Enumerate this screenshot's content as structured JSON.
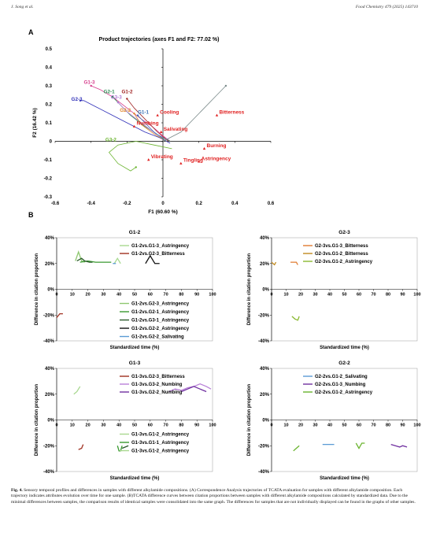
{
  "header": {
    "left": "J. Song et al.",
    "right": "Food Chemistry 479 (2025) 143710"
  },
  "panel_a": {
    "letter": "A",
    "chart_data": {
      "type": "line",
      "title": "Product trajectories (axes F1 and F2: 77.02 %)",
      "xlabel": "F1 (60.60 %)",
      "ylabel": "F2 (16.42 %)",
      "xlim": [
        -0.6,
        0.6
      ],
      "ylim": [
        -0.3,
        0.5
      ],
      "xticks": [
        "-0.6",
        "-0.4",
        "-0.2",
        "0",
        "0.2",
        "0.4",
        "0.6"
      ],
      "yticks": [
        "0.5",
        "0.4",
        "0.3",
        "0.2",
        "0.1",
        "0",
        "-0.1",
        "-0.2",
        "-0.3"
      ],
      "attributes": [
        {
          "name": "Bitterness",
          "x": 0.3,
          "y": 0.14
        },
        {
          "name": "Cooling",
          "x": -0.03,
          "y": 0.14
        },
        {
          "name": "Salivating",
          "x": -0.01,
          "y": 0.05
        },
        {
          "name": "Numbing",
          "x": -0.16,
          "y": 0.08
        },
        {
          "name": "Burning",
          "x": 0.23,
          "y": -0.04
        },
        {
          "name": "Astringency",
          "x": 0.2,
          "y": -0.11
        },
        {
          "name": "Tingling",
          "x": 0.1,
          "y": -0.12
        },
        {
          "name": "Vibrating",
          "x": -0.08,
          "y": -0.1
        }
      ],
      "samples": [
        {
          "name": "G1-3",
          "color": "#d63c8c",
          "label_x": -0.44,
          "label_y": 0.31,
          "x": [
            0.04,
            0.0,
            -0.06,
            -0.12,
            -0.2,
            -0.28,
            -0.35,
            -0.4
          ],
          "y": [
            0.0,
            0.03,
            0.08,
            0.12,
            0.18,
            0.24,
            0.28,
            0.3
          ]
        },
        {
          "name": "G2-3",
          "color": "#3030b8",
          "label_x": -0.51,
          "label_y": 0.22,
          "x": [
            0.04,
            -0.02,
            -0.1,
            -0.2,
            -0.3,
            -0.38,
            -0.44,
            -0.46
          ],
          "y": [
            -0.01,
            0.02,
            0.05,
            0.1,
            0.15,
            0.19,
            0.22,
            0.22
          ]
        },
        {
          "name": "G2-1",
          "color": "#2f8c55",
          "label_x": -0.33,
          "label_y": 0.26,
          "x": [
            0.04,
            -0.02,
            -0.1,
            -0.18,
            -0.24,
            -0.28
          ],
          "y": [
            0.0,
            0.03,
            0.08,
            0.14,
            0.2,
            0.24
          ]
        },
        {
          "name": "G3-3",
          "color": "#b07ad6",
          "label_x": -0.29,
          "label_y": 0.23,
          "x": [
            0.03,
            -0.04,
            -0.12,
            -0.2,
            -0.25
          ],
          "y": [
            0.01,
            0.04,
            0.1,
            0.16,
            0.21
          ]
        },
        {
          "name": "G1-2",
          "color": "#a02222",
          "label_x": -0.23,
          "label_y": 0.26,
          "x": [
            0.03,
            -0.03,
            -0.1,
            -0.16,
            -0.2
          ],
          "y": [
            0.0,
            0.05,
            0.12,
            0.18,
            0.23
          ]
        },
        {
          "name": "G2-2",
          "color": "#e0862a",
          "label_x": -0.24,
          "label_y": 0.16,
          "x": [
            0.02,
            -0.05,
            -0.12,
            -0.16
          ],
          "y": [
            0.0,
            0.04,
            0.09,
            0.15
          ]
        },
        {
          "name": "G1-1",
          "color": "#3a6fb5",
          "label_x": -0.14,
          "label_y": 0.15,
          "x": [
            0.02,
            -0.05,
            -0.1,
            -0.14
          ],
          "y": [
            0.0,
            0.05,
            0.1,
            0.14
          ]
        },
        {
          "name": "G3-2",
          "color": "#6ab42e",
          "label_x": -0.32,
          "label_y": 0.0,
          "x": [
            0.05,
            -0.05,
            -0.15,
            -0.25,
            -0.3,
            -0.25,
            -0.18,
            -0.15
          ],
          "y": [
            -0.04,
            -0.02,
            0.0,
            -0.02,
            -0.06,
            -0.12,
            -0.16,
            -0.14
          ]
        },
        {
          "name": "G3-1",
          "color": "#7a8a8a",
          "label_x": null,
          "label_y": null,
          "x": [
            0.0,
            0.1,
            0.2,
            0.3,
            0.35
          ],
          "y": [
            0.0,
            0.05,
            0.15,
            0.25,
            0.3
          ]
        }
      ]
    }
  },
  "panel_b": {
    "letter": "B",
    "chart_data": [
      {
        "type": "line",
        "title": "G1-2",
        "xlabel": "Standardized time (%)",
        "ylabel": "Difference in citation proportion",
        "xlim": [
          0,
          100
        ],
        "ylim": [
          -40,
          40
        ],
        "yticks": [
          "40%",
          "20%",
          "0%",
          "-20%",
          "-40%"
        ],
        "xticks": [
          "0",
          "10",
          "20",
          "30",
          "40",
          "50",
          "60",
          "70",
          "80",
          "90",
          "100"
        ],
        "legend_top": [
          "G1-2vs.G1-3_Astringency",
          "G1-2vs.G2-3_Bitterness"
        ],
        "legend_bottom": [
          "G1-2vs.G2-3_Astringency",
          "G1-2vs.G2-1_Astringency",
          "G1-2vs.G3-1_Astringency",
          "G1-2vs.G2-2_Astringency",
          "G1-2vs.G2-2_Salivating"
        ],
        "series": [
          {
            "name": "G1-2vs.G1-3_Astringency",
            "color": "#a8d890",
            "x": [
              37,
              39,
              41
            ],
            "y": [
              20,
              24,
              20
            ]
          },
          {
            "name": "G1-2vs.G2-3_Bitterness",
            "color": "#a03020",
            "x": [
              0,
              2,
              4
            ],
            "y": [
              -22,
              -19,
              -19
            ]
          },
          {
            "name": "G1-2vs.G2-3_Astringency",
            "color": "#8fc870",
            "x": [
              12,
              14,
              16,
              18
            ],
            "y": [
              22,
              29,
              22,
              21
            ]
          },
          {
            "name": "G1-2vs.G2-1_Astringency",
            "color": "#3a9a30",
            "x": [
              15,
              20,
              25,
              30,
              35
            ],
            "y": [
              21,
              22,
              21,
              21,
              21
            ]
          },
          {
            "name": "G1-2vs.G3-1_Astringency",
            "color": "#2a5a2a",
            "x": [
              13,
              16,
              18,
              21,
              23
            ],
            "y": [
              22,
              24,
              22,
              21,
              21
            ]
          },
          {
            "name": "G1-2vs.G2-2_Astringency",
            "color": "#111111",
            "x": [
              57,
              60,
              63,
              66
            ],
            "y": [
              20,
              26,
              20,
              20
            ]
          },
          {
            "name": "G1-2vs.G2-2_Salivating",
            "color": "#5b9bd5",
            "x": [
              36,
              38
            ],
            "y": [
              20,
              20
            ]
          }
        ]
      },
      {
        "type": "line",
        "title": "G2-3",
        "xlabel": "Standardized time (%)",
        "ylabel": "Difference in citation proportion",
        "xlim": [
          0,
          100
        ],
        "ylim": [
          -40,
          40
        ],
        "yticks": [
          "40%",
          "20%",
          "0%",
          "-20%",
          "-40%"
        ],
        "xticks": [
          "0",
          "10",
          "20",
          "30",
          "40",
          "50",
          "60",
          "70",
          "80",
          "90",
          "100"
        ],
        "legend_top": [
          "G2-3vs.G1-3_Bitterness",
          "G2-3vs.G1-2_Bitterness",
          "G2-3vs.G1-2_Astringency"
        ],
        "legend_bottom": [],
        "series": [
          {
            "name": "G2-3vs.G1-3_Bitterness",
            "color": "#e07b30",
            "x": [
              13,
              15,
              17,
              18
            ],
            "y": [
              21,
              21,
              21,
              19
            ]
          },
          {
            "name": "G2-3vs.G1-2_Bitterness",
            "color": "#c08a20",
            "x": [
              0,
              2,
              3
            ],
            "y": [
              21,
              19,
              21
            ]
          },
          {
            "name": "G2-3vs.G1-2_Astringency",
            "color": "#8ab830",
            "x": [
              14,
              16,
              18,
              19
            ],
            "y": [
              -21,
              -23,
              -24,
              -21
            ]
          }
        ]
      },
      {
        "type": "line",
        "title": "G1-3",
        "xlabel": "Standardized time (%)",
        "ylabel": "Difference in citation proportion",
        "xlim": [
          0,
          100
        ],
        "ylim": [
          -40,
          40
        ],
        "yticks": [
          "40%",
          "20%",
          "0%",
          "-20%",
          "-40%"
        ],
        "xticks": [
          "0",
          "10",
          "20",
          "30",
          "40",
          "50",
          "60",
          "70",
          "80",
          "90",
          "100"
        ],
        "legend_top": [
          "G1-3vs.G2-3_Bitterness",
          "G1-3vs.G3-2_Numbing",
          "G1-3vs.G2-2_Numbing"
        ],
        "legend_bottom": [
          "G1-3vs.G1-2_Astringency",
          "G1-3vs.G1-1_Astringency",
          "G1-3vs.G1-2_Astringency"
        ],
        "series": [
          {
            "name": "G1-3vs.G2-3_Bitterness",
            "color": "#a03020",
            "x": [
              14,
              16,
              17
            ],
            "y": [
              -23,
              -22,
              -19
            ]
          },
          {
            "name": "G1-3vs.G3-2_Numbing",
            "color": "#b880d8",
            "x": [
              72,
              76,
              80,
              84,
              88,
              92,
              96,
              99
            ],
            "y": [
              22,
              24,
              23,
              25,
              26,
              28,
              26,
              24
            ]
          },
          {
            "name": "G1-3vs.G2-2_Numbing",
            "color": "#7030a0",
            "x": [
              80,
              84,
              88,
              92,
              96
            ],
            "y": [
              22,
              24,
              26,
              24,
              22
            ]
          },
          {
            "name": "G1-3vs.G1-2_Astringency",
            "color": "#a8d890",
            "x": [
              11,
              13,
              15
            ],
            "y": [
              20,
              22,
              26
            ]
          },
          {
            "name": "G1-3vs.G1-1_Astringency",
            "color": "#3a9a30",
            "x": [
              39,
              40,
              41,
              42
            ],
            "y": [
              -20,
              -24,
              -24,
              -20
            ]
          },
          {
            "name": "G1-3vs.G1-2_Astringency",
            "color": "#2a5a2a",
            "x": [
              42,
              44,
              46
            ],
            "y": [
              -22,
              -21,
              -20
            ]
          }
        ]
      },
      {
        "type": "line",
        "title": "G2-2",
        "xlabel": "Standardized time (%)",
        "ylabel": "Difference in citation proportion",
        "xlim": [
          0,
          100
        ],
        "ylim": [
          -40,
          40
        ],
        "yticks": [
          "40%",
          "20%",
          "0%",
          "-20%",
          "-40%"
        ],
        "xticks": [
          "0",
          "10",
          "20",
          "30",
          "40",
          "50",
          "60",
          "70",
          "80",
          "90",
          "100"
        ],
        "legend_top": [
          "G2-2vs.G1-2_Salivating",
          "G2-2vs.G1-3_Numbing",
          "G2-2vs.G1-2_Astringency"
        ],
        "legend_bottom": [],
        "series": [
          {
            "name": "G2-2vs.G1-2_Salivating",
            "color": "#5b9bd5",
            "x": [
              35,
              39,
              43
            ],
            "y": [
              -19,
              -19,
              -19
            ]
          },
          {
            "name": "G2-2vs.G1-3_Numbing",
            "color": "#7030a0",
            "x": [
              82,
              85,
              88,
              90,
              93
            ],
            "y": [
              -19,
              -20,
              -21,
              -20,
              -21
            ]
          },
          {
            "name": "G2-2vs.G1-2_Astringency",
            "color": "#6ab42e",
            "x": [
              15,
              17,
              19,
              55,
              58,
              60,
              62,
              64
            ],
            "y": [
              -24,
              -22,
              -20,
              null,
              -18,
              -22,
              -18,
              -18
            ]
          }
        ]
      }
    ]
  },
  "caption": {
    "label": "Fig. 4.",
    "text": " Sensory temporal profiles and differences in samples with different alkylamide compositions. (A) Correspondence Analysis trajectories of TCATA evaluation for samples with different alkylamide composition. Each trajectory indicates attributes evolution over time for one sample. (B)TCATA difference curves between citation proportions between samples with different alkylamide compositions calculated by standardized data. Due to the minimal differences between samples, the comparison results of identical samples were consolidated into the same graph. The differences for samples that are not individually displayed can be found in the graphs of other samples."
  }
}
